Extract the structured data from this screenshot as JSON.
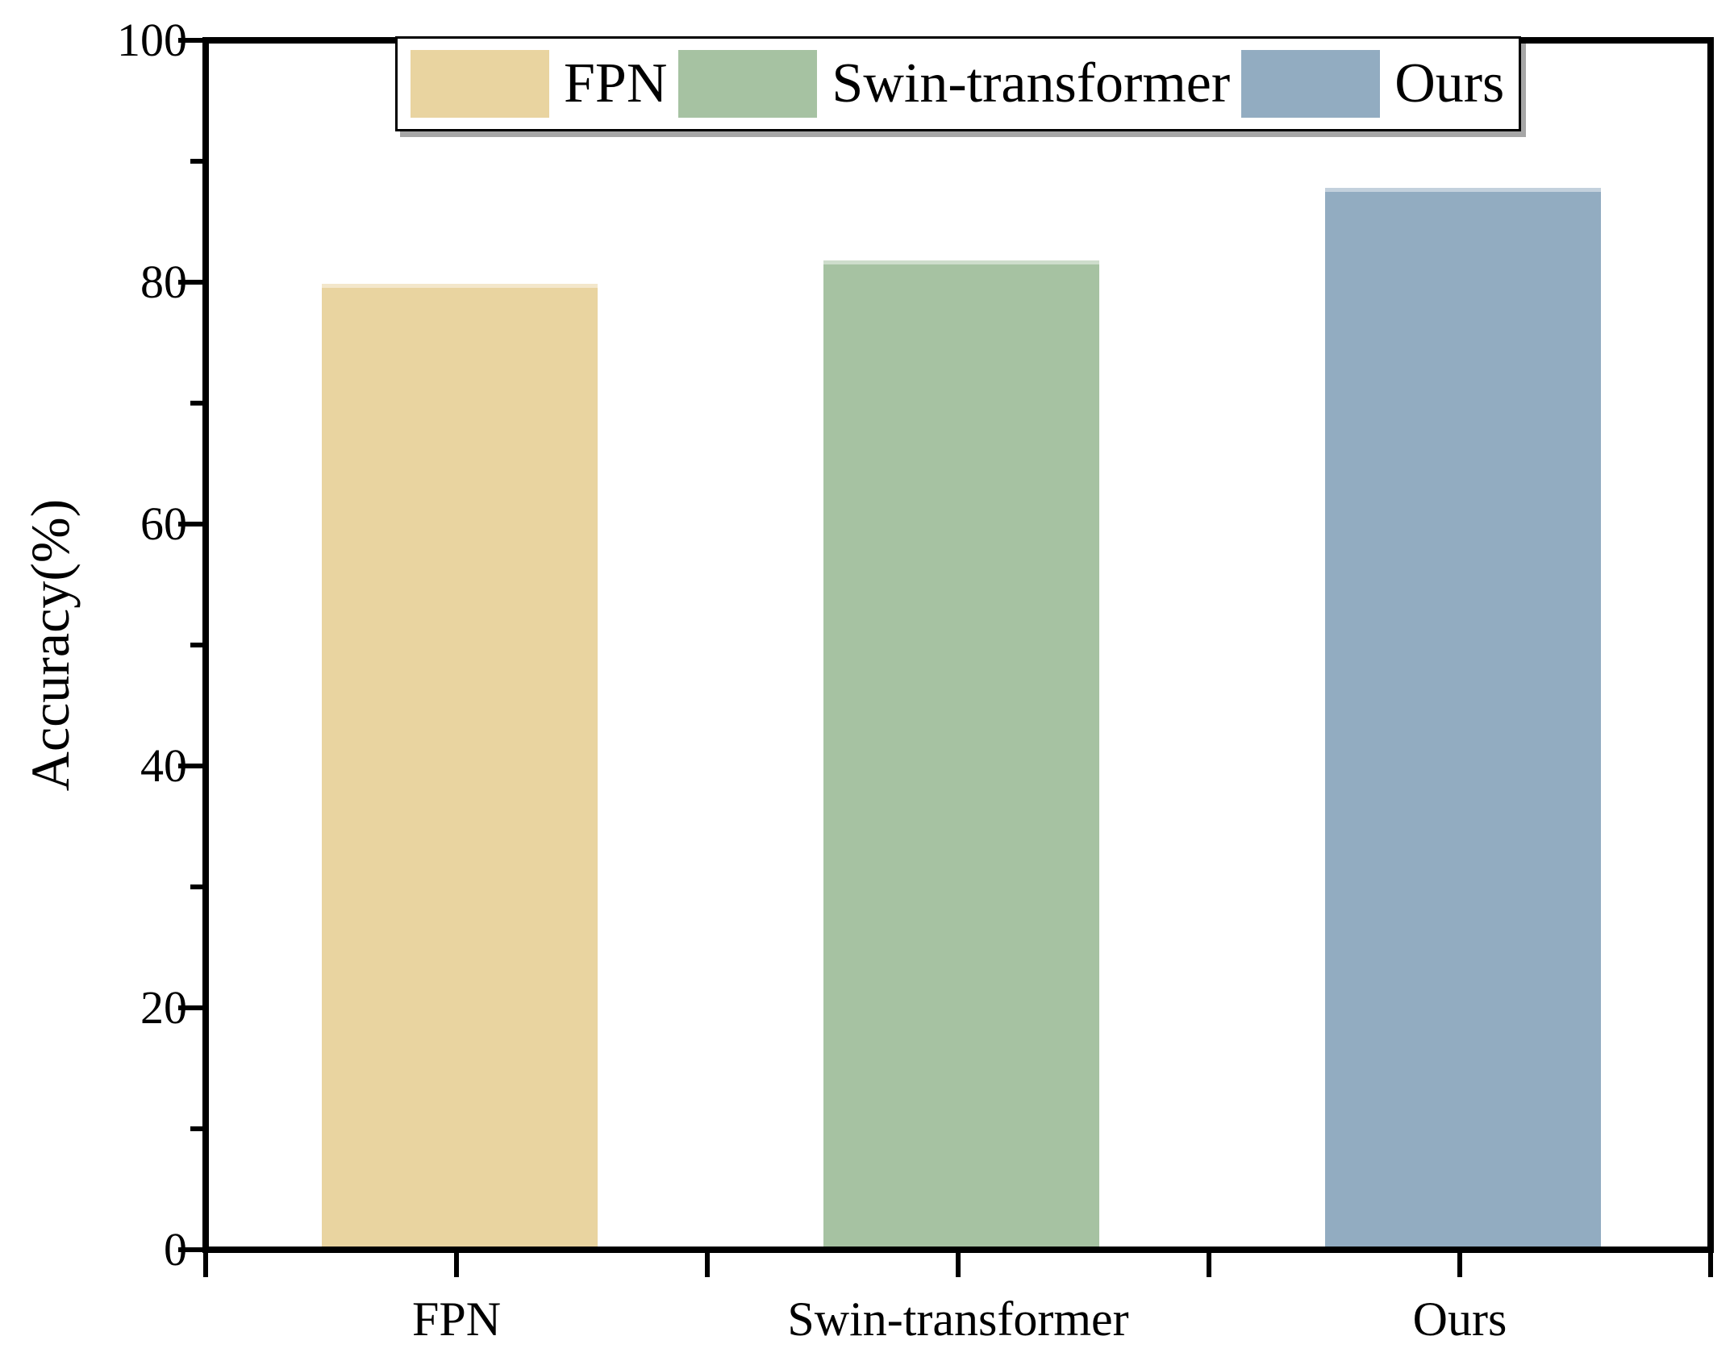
{
  "figure": {
    "background": "#ffffff",
    "axis_color": "#000000"
  },
  "chart_data": {
    "type": "bar",
    "title": "",
    "categories": [
      "FPN",
      "Swin-transformer",
      "Ours"
    ],
    "values": [
      80,
      82,
      88
    ],
    "bar_colors": [
      "#e9d4a0",
      "#a6c2a2",
      "#92acc1"
    ],
    "xlabel": "",
    "ylabel": "Accuracy(%)",
    "ylim": [
      0,
      100
    ],
    "ytick_major_step": 20,
    "ytick_minor_step": 10,
    "ytick_labels": [
      "0",
      "20",
      "40",
      "60",
      "80",
      "100"
    ],
    "grid": false,
    "legend": {
      "position": "top-inside",
      "entries": [
        {
          "label": "FPN",
          "color": "#e9d4a0"
        },
        {
          "label": "Swin-transformer",
          "color": "#a6c2a2"
        },
        {
          "label": "Ours",
          "color": "#92acc1"
        }
      ]
    }
  }
}
